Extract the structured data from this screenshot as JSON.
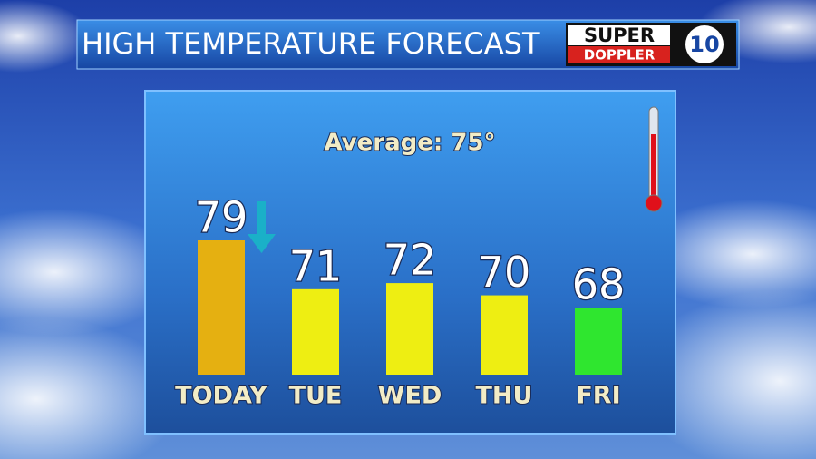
{
  "chart_data": {
    "type": "bar",
    "title": "HIGH TEMPERATURE FORECAST",
    "logo": [
      "SUPER",
      "DOPPLER",
      "10"
    ],
    "annotation": "Average: 75°",
    "categories": [
      "TODAY",
      "TUE",
      "WED",
      "THU",
      "FRI"
    ],
    "values": [
      79,
      71,
      72,
      70,
      68
    ],
    "colors": [
      "#e5b011",
      "#eeee12",
      "#eeee12",
      "#eeee12",
      "#2fe62f"
    ],
    "ylim": [
      57,
      79
    ]
  }
}
